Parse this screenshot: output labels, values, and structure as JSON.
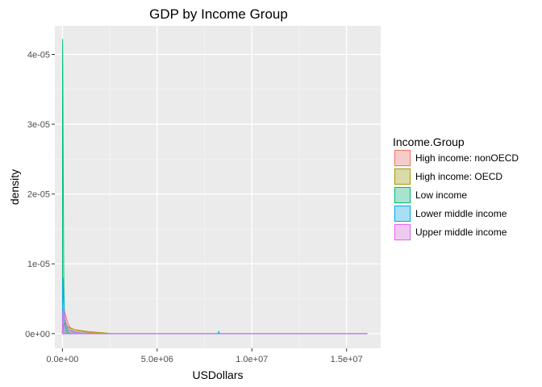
{
  "chart_data": {
    "type": "area",
    "title": "GDP by Income Group",
    "xlabel": "USDollars",
    "ylabel": "density",
    "xlim": [
      -400000,
      16800000
    ],
    "ylim": [
      -2.1e-06,
      4.41e-05
    ],
    "x_ticks": [
      {
        "value": 0,
        "label": "0.0e+00"
      },
      {
        "value": 5000000,
        "label": "5.0e+06"
      },
      {
        "value": 10000000,
        "label": "1.0e+07"
      },
      {
        "value": 15000000,
        "label": "1.5e+07"
      }
    ],
    "y_ticks": [
      {
        "value": 0,
        "label": "0e+00"
      },
      {
        "value": 1e-05,
        "label": "1e-05"
      },
      {
        "value": 2e-05,
        "label": "2e-05"
      },
      {
        "value": 3e-05,
        "label": "3e-05"
      },
      {
        "value": 4e-05,
        "label": "4e-05"
      }
    ],
    "grid": true,
    "legend": {
      "title": "Income.Group",
      "placement": "right"
    },
    "series": [
      {
        "name": "High income: nonOECD",
        "stroke": "#F8766D",
        "fill": "#F8766D",
        "points": [
          [
            0,
            0
          ],
          [
            40000,
            2.1e-06
          ],
          [
            90000,
            3.5e-06
          ],
          [
            150000,
            2.8e-06
          ],
          [
            250000,
            1.8e-06
          ],
          [
            400000,
            9e-07
          ],
          [
            600000,
            6e-07
          ],
          [
            900000,
            4e-07
          ],
          [
            1300000,
            2e-07
          ],
          [
            1800000,
            1e-07
          ],
          [
            2300000,
            0
          ],
          [
            16100000,
            0
          ]
        ]
      },
      {
        "name": "High income: OECD",
        "stroke": "#A3A500",
        "fill": "#A3A500",
        "points": [
          [
            0,
            0
          ],
          [
            50000,
            1.2e-06
          ],
          [
            120000,
            1.5e-06
          ],
          [
            250000,
            1.1e-06
          ],
          [
            400000,
            8e-07
          ],
          [
            600000,
            6e-07
          ],
          [
            850000,
            5e-07
          ],
          [
            1100000,
            4e-07
          ],
          [
            1400000,
            3e-07
          ],
          [
            1800000,
            2e-07
          ],
          [
            2300000,
            1e-07
          ],
          [
            2600000,
            0
          ],
          [
            16100000,
            0
          ]
        ]
      },
      {
        "name": "Low income",
        "stroke": "#00BF7D",
        "fill": "#00BF7D",
        "points": [
          [
            0,
            0
          ],
          [
            5000,
            3.8e-05
          ],
          [
            10000,
            4.22e-05
          ],
          [
            20000,
            3.76e-05
          ],
          [
            35000,
            2.8e-05
          ],
          [
            50000,
            1.87e-05
          ],
          [
            70000,
            8.5e-06
          ],
          [
            100000,
            3.2e-06
          ],
          [
            150000,
            1.1e-06
          ],
          [
            250000,
            3e-07
          ],
          [
            400000,
            0
          ],
          [
            16100000,
            0
          ]
        ]
      },
      {
        "name": "Lower middle income",
        "stroke": "#00B0F6",
        "fill": "#00B0F6",
        "points": [
          [
            0,
            0
          ],
          [
            15000,
            5.5e-06
          ],
          [
            30000,
            8e-06
          ],
          [
            60000,
            5.2e-06
          ],
          [
            100000,
            3e-06
          ],
          [
            180000,
            1.4e-06
          ],
          [
            300000,
            6e-07
          ],
          [
            600000,
            3e-07
          ],
          [
            1000000,
            1e-07
          ],
          [
            1700000,
            0
          ],
          [
            8200000,
            0
          ],
          [
            8250000,
            3e-07
          ],
          [
            8300000,
            0
          ],
          [
            16100000,
            0
          ]
        ]
      },
      {
        "name": "Upper middle income",
        "stroke": "#E76BF3",
        "fill": "#E76BF3",
        "points": [
          [
            0,
            0
          ],
          [
            20000,
            3e-06
          ],
          [
            50000,
            3.6e-06
          ],
          [
            100000,
            2.8e-06
          ],
          [
            180000,
            1.6e-06
          ],
          [
            300000,
            7e-07
          ],
          [
            500000,
            3e-07
          ],
          [
            900000,
            1e-07
          ],
          [
            1400000,
            0
          ],
          [
            16100000,
            0
          ]
        ]
      }
    ]
  }
}
